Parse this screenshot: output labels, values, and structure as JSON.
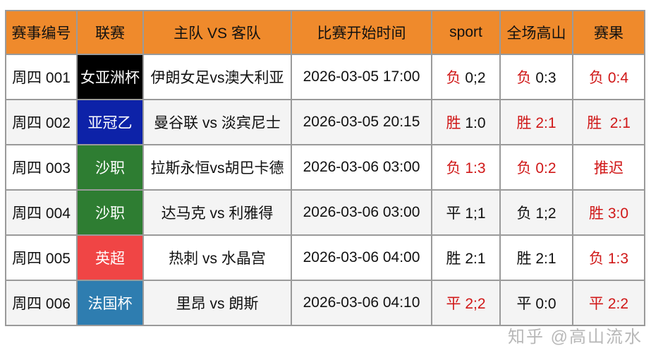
{
  "headers": [
    "赛事编号",
    "联赛",
    "主队 VS 客队",
    "比赛开始时间",
    "sport",
    "全场高山",
    "赛果"
  ],
  "rows": [
    {
      "id": "周四 001",
      "league": "女亚洲杯",
      "league_color": "#000000",
      "match": "伊朗女足vs澳大利亚",
      "time": "2026-03-05 17:00",
      "sport": {
        "r": "负",
        "s": "0;2"
      },
      "full": {
        "r": "负",
        "s": "0:3"
      },
      "result": "负 0:4"
    },
    {
      "id": "周四 002",
      "league": "亚冠乙",
      "league_color": "#0d22a8",
      "match": "曼谷联 vs 淡宾尼士",
      "time": "2026-03-05 20:15",
      "sport": {
        "r": "胜",
        "s": "1:0"
      },
      "full": {
        "r": "胜",
        "s": "2:1"
      },
      "result": "胜  2:1"
    },
    {
      "id": "周四 003",
      "league": "沙职",
      "league_color": "#2e7d32",
      "match": "拉斯永恒vs胡巴卡德",
      "time": "2026-03-06 03:00",
      "sport": {
        "r": "负",
        "s": "1:3"
      },
      "full": {
        "r": "负",
        "s": "0:2"
      },
      "result": "推迟"
    },
    {
      "id": "周四 004",
      "league": "沙职",
      "league_color": "#2e7d32",
      "match": "达马克 vs 利雅得",
      "time": "2026-03-06 03:00",
      "sport": {
        "r": "平",
        "s": "1;1"
      },
      "full": {
        "r": "负",
        "s": "1;2"
      },
      "result": "胜 3:0"
    },
    {
      "id": "周四 005",
      "league": "英超",
      "league_color": "#f04545",
      "match": "热刺 vs 水晶宫",
      "time": "2026-03-06 04:00",
      "sport": {
        "r": "胜",
        "s": "2:1"
      },
      "full": {
        "r": "胜",
        "s": "2:1"
      },
      "result": "负 1:3"
    },
    {
      "id": "周四 006",
      "league": "法国杯",
      "league_color": "#2e7db0",
      "match": "里昂 vs 朗斯",
      "time": "2026-03-06 04:10",
      "sport": {
        "r": "平",
        "s": "2;2"
      },
      "full": {
        "r": "平",
        "s": "0:0"
      },
      "result": "平 2:2"
    }
  ],
  "colors": {
    "header": "#ef8a2c",
    "red": "#d01818"
  },
  "watermark": "知乎 @高山流水"
}
